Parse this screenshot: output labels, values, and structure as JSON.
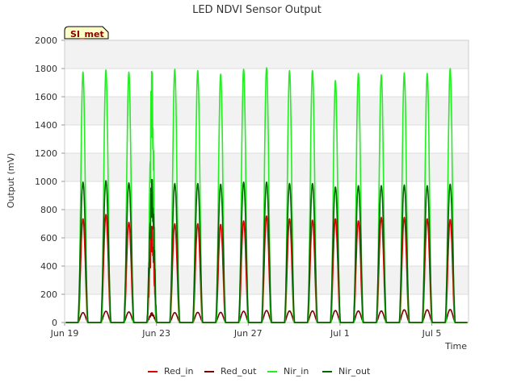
{
  "chart_data": {
    "type": "line",
    "title": "LED NDVI Sensor Output",
    "xlabel": "Time",
    "ylabel": "Output (mV)",
    "ylim": [
      0,
      2000
    ],
    "yticks": [
      0,
      200,
      400,
      600,
      800,
      1000,
      1200,
      1400,
      1600,
      1800,
      2000
    ],
    "xlim_days": [
      0,
      17.6
    ],
    "xticks": [
      {
        "day": 0,
        "label": "Jun 19"
      },
      {
        "day": 4,
        "label": "Jun 23"
      },
      {
        "day": 8,
        "label": "Jun 27"
      },
      {
        "day": 12,
        "label": "Jul 1"
      },
      {
        "day": 16,
        "label": "Jul 5"
      }
    ],
    "badge": "SI_met",
    "background_bands": true,
    "daily_peaks_x_days": [
      0.8,
      1.8,
      2.8,
      3.8,
      4.8,
      5.8,
      6.8,
      7.8,
      8.8,
      9.8,
      10.8,
      11.8,
      12.8,
      13.8,
      14.8,
      15.8,
      16.8
    ],
    "series": [
      {
        "name": "Red_in",
        "color": "#dd0000",
        "daily_peaks": [
          735,
          765,
          710,
          700,
          700,
          700,
          695,
          720,
          755,
          735,
          725,
          735,
          720,
          745,
          745,
          735,
          730
        ]
      },
      {
        "name": "Red_out",
        "color": "#7a0000",
        "daily_peaks": [
          70,
          80,
          75,
          70,
          70,
          72,
          72,
          80,
          85,
          82,
          82,
          85,
          82,
          82,
          90,
          90,
          92
        ]
      },
      {
        "name": "Nir_in",
        "color": "#22ee22",
        "daily_peaks": [
          1775,
          1790,
          1775,
          1830,
          1795,
          1785,
          1760,
          1795,
          1805,
          1785,
          1785,
          1715,
          1765,
          1755,
          1770,
          1765,
          1800
        ]
      },
      {
        "name": "Nir_out",
        "color": "#006600",
        "daily_peaks": [
          995,
          1005,
          990,
          1040,
          985,
          985,
          980,
          995,
          995,
          985,
          985,
          960,
          970,
          970,
          975,
          970,
          980
        ]
      }
    ]
  }
}
